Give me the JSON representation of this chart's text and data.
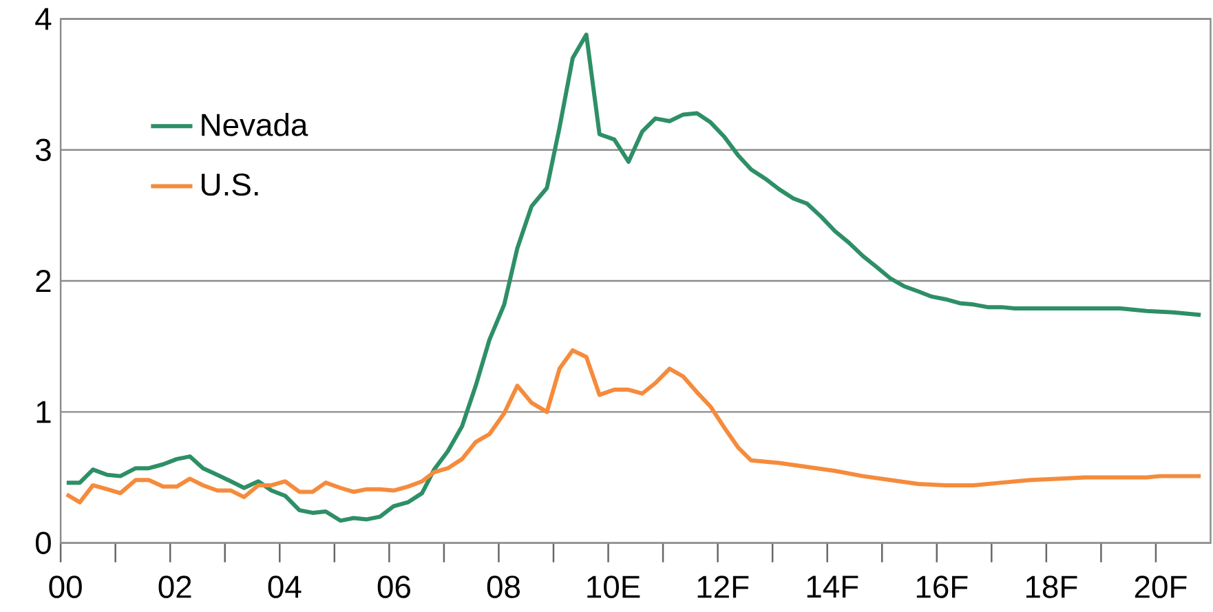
{
  "chart_data": {
    "type": "line",
    "xlim": [
      0,
      21
    ],
    "ylim": [
      0,
      4
    ],
    "xticks": [
      {
        "value": 0,
        "label": "00"
      },
      {
        "value": 2,
        "label": "02"
      },
      {
        "value": 4,
        "label": "04"
      },
      {
        "value": 6,
        "label": "06"
      },
      {
        "value": 8,
        "label": "08"
      },
      {
        "value": 10,
        "label": "10E"
      },
      {
        "value": 12,
        "label": "12F"
      },
      {
        "value": 14,
        "label": "14F"
      },
      {
        "value": 16,
        "label": "16F"
      },
      {
        "value": 18,
        "label": "18F"
      },
      {
        "value": 20,
        "label": "20F"
      }
    ],
    "yticks": [
      0,
      1,
      2,
      3,
      4
    ],
    "grid": "y",
    "legend": "top left",
    "series": [
      {
        "name": "Nevada",
        "color": "#2e8f66",
        "x": [
          0.11,
          0.35,
          0.59,
          0.85,
          1.09,
          1.37,
          1.61,
          1.87,
          2.12,
          2.36,
          2.6,
          2.86,
          3.11,
          3.35,
          3.61,
          3.85,
          4.1,
          4.36,
          4.6,
          4.84,
          5.11,
          5.35,
          5.59,
          5.83,
          6.08,
          6.34,
          6.6,
          6.82,
          7.07,
          7.33,
          7.58,
          7.83,
          8.1,
          8.34,
          8.6,
          8.88,
          9.11,
          9.35,
          9.6,
          9.84,
          10.11,
          10.37,
          10.62,
          10.86,
          11.12,
          11.37,
          11.62,
          11.87,
          12.12,
          12.37,
          12.61,
          12.87,
          13.12,
          13.38,
          13.63,
          13.89,
          14.14,
          14.4,
          14.65,
          14.89,
          15.15,
          15.4,
          15.66,
          15.91,
          16.16,
          16.42,
          16.67,
          16.93,
          17.18,
          17.42,
          19.35,
          19.83,
          20.32,
          20.82
        ],
        "values": [
          0.46,
          0.46,
          0.56,
          0.52,
          0.51,
          0.57,
          0.57,
          0.6,
          0.64,
          0.66,
          0.57,
          0.52,
          0.47,
          0.42,
          0.47,
          0.4,
          0.36,
          0.25,
          0.23,
          0.24,
          0.17,
          0.19,
          0.18,
          0.2,
          0.28,
          0.31,
          0.38,
          0.56,
          0.7,
          0.89,
          1.2,
          1.55,
          1.82,
          2.25,
          2.57,
          2.71,
          3.17,
          3.7,
          3.88,
          3.12,
          3.08,
          2.91,
          3.14,
          3.24,
          3.22,
          3.27,
          3.28,
          3.21,
          3.1,
          2.96,
          2.85,
          2.78,
          2.7,
          2.63,
          2.59,
          2.49,
          2.38,
          2.29,
          2.19,
          2.11,
          2.02,
          1.96,
          1.92,
          1.88,
          1.86,
          1.83,
          1.82,
          1.8,
          1.8,
          1.79,
          1.79,
          1.77,
          1.76,
          1.74
        ]
      },
      {
        "name": "U.S.",
        "color": "#f58b3c",
        "x": [
          0.11,
          0.35,
          0.59,
          0.85,
          1.09,
          1.37,
          1.61,
          1.87,
          2.12,
          2.36,
          2.6,
          2.86,
          3.11,
          3.35,
          3.61,
          3.85,
          4.1,
          4.36,
          4.6,
          4.84,
          5.11,
          5.35,
          5.59,
          5.83,
          6.08,
          6.34,
          6.6,
          6.82,
          7.07,
          7.33,
          7.58,
          7.83,
          8.1,
          8.34,
          8.6,
          8.88,
          9.11,
          9.35,
          9.6,
          9.84,
          10.11,
          10.37,
          10.62,
          10.86,
          11.12,
          11.37,
          11.62,
          11.87,
          12.12,
          12.37,
          12.61,
          13.12,
          13.63,
          14.14,
          14.65,
          15.15,
          15.66,
          16.16,
          16.67,
          17.18,
          17.71,
          18.21,
          18.72,
          19.35,
          19.83,
          20.07,
          20.32,
          20.82
        ],
        "values": [
          0.37,
          0.31,
          0.44,
          0.41,
          0.38,
          0.48,
          0.48,
          0.43,
          0.43,
          0.49,
          0.44,
          0.4,
          0.4,
          0.35,
          0.44,
          0.44,
          0.47,
          0.39,
          0.39,
          0.46,
          0.42,
          0.39,
          0.41,
          0.41,
          0.4,
          0.43,
          0.47,
          0.54,
          0.57,
          0.64,
          0.77,
          0.83,
          0.99,
          1.2,
          1.07,
          1.0,
          1.33,
          1.47,
          1.42,
          1.13,
          1.17,
          1.17,
          1.14,
          1.22,
          1.33,
          1.27,
          1.15,
          1.04,
          0.88,
          0.73,
          0.63,
          0.61,
          0.58,
          0.55,
          0.51,
          0.48,
          0.45,
          0.44,
          0.44,
          0.46,
          0.48,
          0.49,
          0.5,
          0.5,
          0.5,
          0.51,
          0.51,
          0.51
        ]
      }
    ]
  }
}
